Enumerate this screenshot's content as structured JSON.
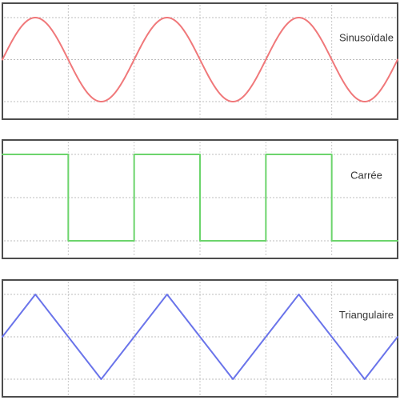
{
  "chart_data": [
    {
      "type": "line",
      "label": "Sinusoïdale",
      "shape": "sine",
      "color": "#f0787a",
      "amplitude": 1,
      "cycles": 3,
      "x": [
        0,
        0.25,
        0.5,
        0.75,
        1,
        1.25,
        1.5,
        1.75,
        2,
        2.25,
        2.5,
        2.75,
        3
      ],
      "y": [
        0,
        1,
        0,
        -1,
        0,
        1,
        0,
        -1,
        0,
        1,
        0,
        -1,
        0
      ],
      "xlim": [
        0,
        3
      ],
      "ylim": [
        -1,
        1
      ],
      "grid": true,
      "grid_h": [
        "max",
        "zero",
        "min"
      ]
    },
    {
      "type": "line",
      "label": "Carrée",
      "shape": "square",
      "color": "#6cd46c",
      "amplitude": 1,
      "cycles": 3,
      "x": [
        0,
        0.5,
        0.5,
        1,
        1,
        1.5,
        1.5,
        2,
        2,
        2.5,
        2.5,
        3
      ],
      "y": [
        1,
        1,
        -1,
        -1,
        1,
        1,
        -1,
        -1,
        1,
        1,
        -1,
        -1
      ],
      "xlim": [
        0,
        3
      ],
      "ylim": [
        -1,
        1
      ],
      "grid": true,
      "grid_h": [
        "max",
        "zero",
        "min"
      ]
    },
    {
      "type": "line",
      "label": "Triangulaire",
      "shape": "triangle",
      "color": "#6a74ea",
      "amplitude": 1,
      "cycles": 3,
      "x": [
        0,
        0.25,
        0.75,
        1.25,
        1.75,
        2.25,
        2.75,
        3
      ],
      "y": [
        0,
        1,
        -1,
        1,
        -1,
        1,
        -1,
        0
      ],
      "xlim": [
        0,
        3
      ],
      "ylim": [
        -1,
        1
      ],
      "grid": true,
      "grid_h": [
        "max",
        "zero",
        "min"
      ]
    }
  ]
}
